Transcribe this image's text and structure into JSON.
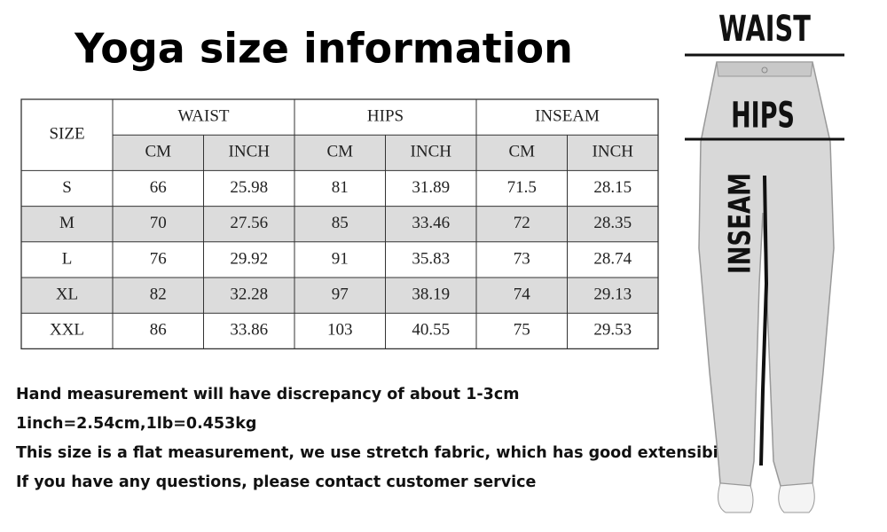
{
  "title": "Yoga size information",
  "table": {
    "size_header": "SIZE",
    "groups": [
      "WAIST",
      "HIPS",
      "INSEAM"
    ],
    "units": [
      "CM",
      "INCH",
      "CM",
      "INCH",
      "CM",
      "INCH"
    ],
    "rows": [
      [
        "S",
        "66",
        "25.98",
        "81",
        "31.89",
        "71.5",
        "28.15"
      ],
      [
        "M",
        "70",
        "27.56",
        "85",
        "33.46",
        "72",
        "28.35"
      ],
      [
        "L",
        "76",
        "29.92",
        "91",
        "35.83",
        "73",
        "28.74"
      ],
      [
        "XL",
        "82",
        "32.28",
        "97",
        "38.19",
        "74",
        "29.13"
      ],
      [
        "XXL",
        "86",
        "33.86",
        "103",
        "40.55",
        "75",
        "29.53"
      ]
    ]
  },
  "notes": [
    "Hand measurement will have discrepancy of about 1-3cm",
    "1inch=2.54cm,1lb=0.453kg",
    "This size is a flat measurement, we use stretch fabric, which has good extensibility",
    "If you have any questions, please contact customer service"
  ],
  "diagram": {
    "waist": "WAIST",
    "hips": "HIPS",
    "inseam": "INSEAM"
  }
}
